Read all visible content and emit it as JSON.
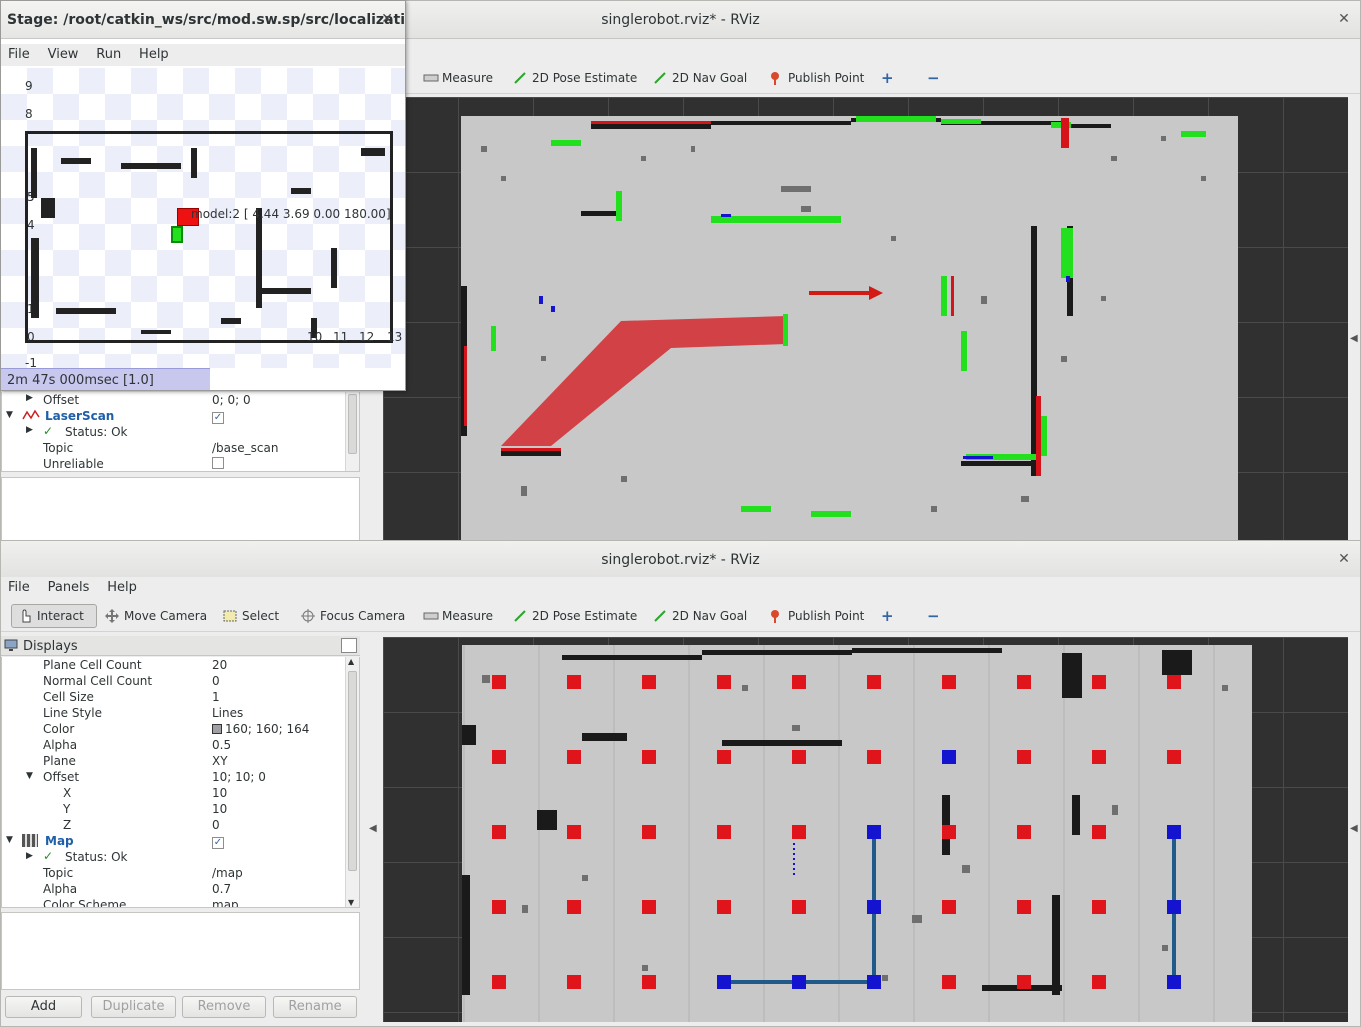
{
  "top_rviz": {
    "title": "singlerobot.rviz* - RViz",
    "tools": [
      {
        "label": "Measure"
      },
      {
        "label": "2D Pose Estimate"
      },
      {
        "label": "2D Nav Goal"
      },
      {
        "label": "Publish Point"
      }
    ],
    "display_rows": [
      {
        "key": "Offset",
        "value": "0; 0; 0"
      },
      {
        "key": "LaserScan",
        "value": ""
      },
      {
        "key": "Status: Ok",
        "value": ""
      },
      {
        "key": "Topic",
        "value": "/base_scan"
      },
      {
        "key": "Unreliable",
        "value": ""
      }
    ]
  },
  "stage": {
    "title": "Stage: /root/catkin_ws/src/mod.sw.sp/src/localizati...",
    "menu": [
      "File",
      "View",
      "Run",
      "Help"
    ],
    "y_ticks": [
      "9",
      "8",
      "5",
      "4",
      "1",
      "0",
      "-1"
    ],
    "x_ticks": [
      "10",
      "11",
      "12",
      "13"
    ],
    "model_label": "model:2 [ 4.44 3.69 0.00 180.00]",
    "status": "2m 47s 000msec [1.0]"
  },
  "bottom_rviz": {
    "title": "singlerobot.rviz* - RViz",
    "menu": [
      "File",
      "Panels",
      "Help"
    ],
    "tools": [
      {
        "label": "Interact"
      },
      {
        "label": "Move Camera"
      },
      {
        "label": "Select"
      },
      {
        "label": "Focus Camera"
      },
      {
        "label": "Measure"
      },
      {
        "label": "2D Pose Estimate"
      },
      {
        "label": "2D Nav Goal"
      },
      {
        "label": "Publish Point"
      }
    ],
    "displays_title": "Displays",
    "display_rows": [
      {
        "key": "Plane Cell Count",
        "value": "20"
      },
      {
        "key": "Normal Cell Count",
        "value": "0"
      },
      {
        "key": "Cell Size",
        "value": "1"
      },
      {
        "key": "Line Style",
        "value": "Lines"
      },
      {
        "key": "Color",
        "value": "160; 160; 164"
      },
      {
        "key": "Alpha",
        "value": "0.5"
      },
      {
        "key": "Plane",
        "value": "XY"
      },
      {
        "key": "Offset",
        "value": "10; 10; 0"
      },
      {
        "key": "X",
        "value": "10"
      },
      {
        "key": "Y",
        "value": "10"
      },
      {
        "key": "Z",
        "value": "0"
      },
      {
        "key": "Map",
        "value": ""
      },
      {
        "key": "Status: Ok",
        "value": ""
      },
      {
        "key": "Topic",
        "value": "/map"
      },
      {
        "key": "Alpha",
        "value": "0.7"
      },
      {
        "key": "Color Scheme",
        "value": "map"
      }
    ],
    "buttons": {
      "add": "Add",
      "duplicate": "Duplicate",
      "remove": "Remove",
      "rename": "Rename"
    }
  },
  "colors": {
    "accent_blue": "#1e5fa8",
    "red_marker": "#e0151b",
    "blue_marker": "#1414d0",
    "path": "#1f5a8a",
    "laser_green": "#22e01e"
  }
}
